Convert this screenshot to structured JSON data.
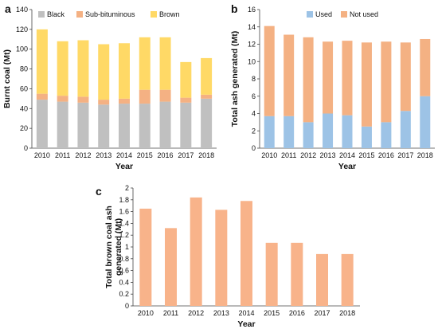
{
  "chart_data": [
    {
      "panel": "a",
      "type": "bar",
      "stacked": true,
      "categories": [
        "2010",
        "2011",
        "2012",
        "2013",
        "2014",
        "2015",
        "2016",
        "2017",
        "2018"
      ],
      "series": [
        {
          "name": "Black",
          "color": "#c0c0c0",
          "values": [
            49,
            47,
            46,
            44,
            45,
            45,
            47,
            46,
            50
          ]
        },
        {
          "name": "Sub-bituminous",
          "color": "#f4b183",
          "values": [
            6,
            6,
            6,
            5,
            5,
            14,
            12,
            5,
            4
          ]
        },
        {
          "name": "Brown",
          "color": "#ffd966",
          "values": [
            65,
            55,
            57,
            56,
            56,
            53,
            53,
            36,
            37
          ]
        }
      ],
      "xlabel": "Year",
      "ylabel": "Burnt coal (Mt)",
      "ylim": [
        0,
        140
      ],
      "yticks": [
        "0",
        "20",
        "40",
        "60",
        "80",
        "100",
        "120",
        "140"
      ],
      "legend_position": "top"
    },
    {
      "panel": "b",
      "type": "bar",
      "stacked": true,
      "categories": [
        "2010",
        "2011",
        "2012",
        "2013",
        "2014",
        "2015",
        "2016",
        "2017",
        "2018"
      ],
      "series": [
        {
          "name": "Used",
          "color": "#9dc3e6",
          "values": [
            3.7,
            3.7,
            3.0,
            4.0,
            3.8,
            2.5,
            3.0,
            4.3,
            6.0
          ]
        },
        {
          "name": "Not used",
          "color": "#f4b183",
          "values": [
            10.4,
            9.4,
            9.8,
            8.3,
            8.6,
            9.7,
            9.3,
            7.9,
            6.6
          ]
        }
      ],
      "xlabel": "Year",
      "ylabel": "Total ash generated (Mt)",
      "ylim": [
        0,
        16
      ],
      "yticks": [
        "0",
        "2",
        "4",
        "6",
        "8",
        "10",
        "12",
        "14",
        "16"
      ],
      "legend_position": "top-left"
    },
    {
      "panel": "c",
      "type": "bar",
      "categories": [
        "2010",
        "2011",
        "2012",
        "2013",
        "2014",
        "2015",
        "2016",
        "2017",
        "2018"
      ],
      "series": [
        {
          "color": "#f8b38a",
          "values": [
            1.65,
            1.32,
            1.84,
            1.63,
            1.78,
            1.07,
            1.07,
            0.88,
            0.88
          ]
        }
      ],
      "xlabel": "Year",
      "ylabel": "Total brown coal ash generated (Mt)",
      "ylabel_lines": [
        "Total brown coal ash",
        "generated (Mt)"
      ],
      "ylim": [
        0,
        2
      ],
      "yticks": [
        "0",
        "0.2",
        "0.4",
        "0.6",
        "0.8",
        "1",
        "1.2",
        "1.4",
        "1.6",
        "1.8",
        "2"
      ]
    }
  ]
}
